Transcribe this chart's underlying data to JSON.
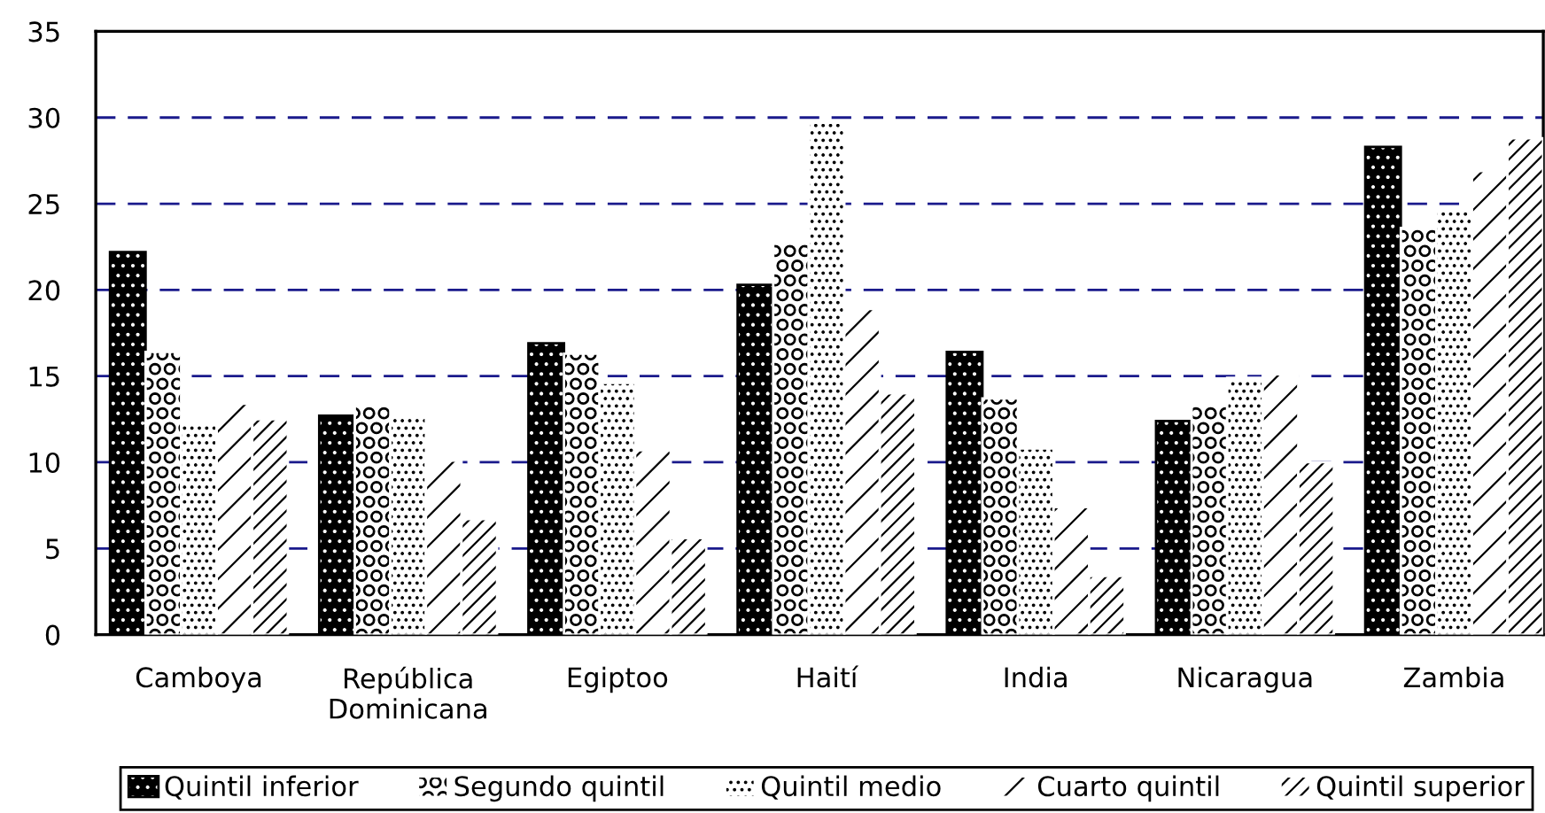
{
  "chart_data": {
    "type": "bar",
    "categories": [
      "Camboya",
      "República Dominicana",
      "Egiptoo",
      "Haití",
      "India",
      "Nicaragua",
      "Zambia"
    ],
    "series": [
      {
        "name": "Quintil inferior",
        "color": "#000000",
        "values": [
          22.2,
          12.7,
          16.9,
          20.3,
          16.4,
          12.4,
          28.3
        ]
      },
      {
        "name": "Segundo quintil",
        "color": "#ffffff",
        "values": [
          16.4,
          13.3,
          16.3,
          22.7,
          13.7,
          13.4,
          23.6
        ]
      },
      {
        "name": "Quintil medio",
        "color": "#ffffff",
        "values": [
          12.2,
          12.6,
          14.6,
          29.7,
          10.8,
          14.9,
          24.6
        ]
      },
      {
        "name": "Cuarto quintil",
        "color": "#ffffff",
        "values": [
          13.4,
          10.1,
          10.7,
          18.9,
          7.4,
          15.1,
          26.9
        ]
      },
      {
        "name": "Quintil superior",
        "color": "#ffffff",
        "values": [
          12.5,
          6.7,
          5.6,
          14.0,
          3.4,
          10.0,
          28.8
        ]
      }
    ],
    "ylim": [
      0,
      35
    ],
    "yticks": [
      0,
      5,
      10,
      15,
      20,
      25,
      30,
      35
    ],
    "grid": "y",
    "legend": "bottom"
  }
}
